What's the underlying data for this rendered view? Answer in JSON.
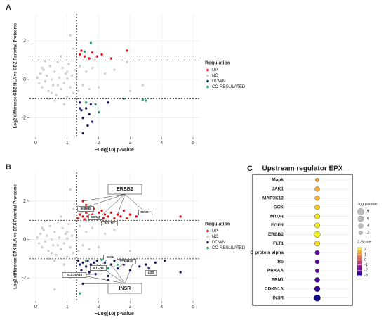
{
  "chart_data": [
    {
      "type": "scatter",
      "panel_label": "A",
      "x_label": "−Log(10) p-value",
      "y_label": "Log2 difference CBZ HLA vs CBZ Parental Proteome",
      "xlim": [
        -0.2,
        5.2
      ],
      "ylim": [
        -3,
        3.4
      ],
      "xticks": [
        0,
        1,
        2,
        3,
        4,
        5
      ],
      "yticks": [
        -2,
        0,
        2
      ],
      "grid": true,
      "vlines": [
        1.3
      ],
      "hlines": [
        -1,
        1
      ],
      "legend_title": "Regulation",
      "legend": "right",
      "series": [
        {
          "name": "NO",
          "color": "#cfcfcf",
          "x": [
            0.05,
            0.1,
            0.15,
            0.2,
            0.25,
            0.3,
            0.35,
            0.4,
            0.45,
            0.5,
            0.55,
            0.6,
            0.65,
            0.7,
            0.75,
            0.8,
            0.85,
            0.9,
            0.95,
            1.0,
            1.05,
            1.1,
            1.15,
            1.2,
            1.25,
            1.35,
            1.4,
            1.5,
            1.6,
            1.7,
            1.8,
            2.0,
            2.2,
            0.3,
            0.6,
            0.8,
            1.1,
            1.0,
            2.5,
            3.0,
            3.4,
            2.9,
            0.9,
            0.4,
            1.2,
            0.2,
            0.5,
            0.7,
            1.0,
            1.3
          ],
          "values": [
            0.1,
            -0.2,
            0.3,
            -0.4,
            0.5,
            -0.1,
            0.2,
            -0.6,
            0.7,
            0,
            -0.3,
            0.4,
            -0.8,
            0.9,
            0.1,
            -0.5,
            0.6,
            -0.2,
            0.3,
            -0.9,
            0.8,
            -0.4,
            0.2,
            -0.7,
            0.5,
            -0.6,
            0.7,
            -0.3,
            0.4,
            -0.5,
            0.6,
            -0.4,
            0.3,
            0.95,
            -1.1,
            1.2,
            2.3,
            0.05,
            0.5,
            -0.6,
            -0.3,
            0.9,
            -1.3,
            -1.0,
            1.6,
            0.6,
            -0.7,
            -0.3,
            0.4,
            0.1
          ]
        },
        {
          "name": "UP",
          "color": "#e8141c",
          "x": [
            1.4,
            1.45,
            1.55,
            1.7,
            1.8,
            1.95,
            2.1,
            2.9,
            2.4
          ],
          "values": [
            1.3,
            1.5,
            1.2,
            1.1,
            1.4,
            1.2,
            1.3,
            1.5,
            1.1
          ]
        },
        {
          "name": "DOWN",
          "color": "#1b1f6b",
          "x": [
            1.4,
            1.45,
            1.5,
            1.6,
            1.7,
            1.65,
            1.8,
            1.75,
            1.5,
            2.3,
            1.4
          ],
          "values": [
            -1.2,
            -1.6,
            -2.0,
            -1.5,
            -1.8,
            -2.4,
            -2.2,
            -1.3,
            -2.8,
            -1.2,
            -1.5
          ]
        },
        {
          "name": "CO-REGULATED",
          "color": "#1fa36a",
          "x": [
            1.55,
            1.75,
            1.6,
            2.0,
            2.8,
            3.4,
            3.5,
            1.9
          ],
          "values": [
            1.45,
            1.9,
            -1.2,
            -1.7,
            -1.0,
            -1.05,
            -1.1,
            -1.3
          ]
        }
      ]
    },
    {
      "type": "scatter",
      "panel_label": "B",
      "x_label": "−Log(10) p-value",
      "y_label": "Log2 difference EPX HLA vs EPX Parental Proteome",
      "xlim": [
        -0.2,
        5.2
      ],
      "ylim": [
        -3.2,
        3.5
      ],
      "xticks": [
        0,
        1,
        2,
        3,
        4,
        5
      ],
      "yticks": [
        -2,
        0,
        2
      ],
      "grid": true,
      "vlines": [
        1.3
      ],
      "hlines": [
        -1,
        1
      ],
      "legend_title": "Regulation",
      "legend": "right",
      "series": [
        {
          "name": "UP",
          "color": "#e8141c",
          "x": [
            1.35,
            1.4,
            1.45,
            1.5,
            1.55,
            1.6,
            1.65,
            1.7,
            1.75,
            1.8,
            1.85,
            1.9,
            1.95,
            2.0,
            2.05,
            2.1,
            2.15,
            2.2,
            2.3,
            2.4,
            2.5,
            2.6,
            2.7,
            2.8,
            2.9,
            3.0,
            3.2,
            3.5,
            3.6,
            4.6,
            1.6,
            1.5
          ],
          "values": [
            1.1,
            1.3,
            1.6,
            1.2,
            1.05,
            1.4,
            1.2,
            1.5,
            1.1,
            1.3,
            1.6,
            1.2,
            1.05,
            1.4,
            1.2,
            1.5,
            1.1,
            1.3,
            1.2,
            1.4,
            1.1,
            1.3,
            1.2,
            1.5,
            1.1,
            1.3,
            1.2,
            1.4,
            1.5,
            1.2,
            1.8,
            2.0
          ]
        },
        {
          "name": "NO",
          "color": "#cfcfcf",
          "x": [
            0.05,
            0.1,
            0.15,
            0.2,
            0.25,
            0.3,
            0.35,
            0.4,
            0.45,
            0.5,
            0.55,
            0.6,
            0.65,
            0.7,
            0.75,
            0.8,
            0.85,
            0.9,
            0.95,
            1.0,
            1.05,
            1.1,
            1.15,
            1.2,
            1.25,
            1.35,
            1.4,
            1.5,
            1.6,
            1.7,
            1.8,
            2.0,
            2.2,
            0.3,
            0.6,
            0.8,
            1.1,
            1.0,
            2.5,
            3.0,
            0.9,
            0.4,
            1.2,
            0.2,
            0.5,
            0.7,
            1.0,
            1.3,
            0.6,
            1.1
          ],
          "values": [
            0.1,
            -0.2,
            0.3,
            -0.4,
            0.5,
            -0.1,
            0.2,
            -0.6,
            0.7,
            0,
            -0.3,
            0.4,
            -0.8,
            0.9,
            0.1,
            -0.5,
            0.6,
            -0.2,
            0.3,
            -0.9,
            0.8,
            -0.4,
            0.2,
            -0.7,
            0.5,
            -0.6,
            0.7,
            -0.3,
            0.4,
            -0.5,
            0.6,
            -0.4,
            0.3,
            0.95,
            -1.1,
            1.2,
            2.6,
            0.05,
            0.5,
            -0.6,
            -1.3,
            -1.0,
            1.6,
            0.6,
            -0.7,
            -0.3,
            0.4,
            0.1,
            -2.6,
            -2.0
          ]
        },
        {
          "name": "DOWN",
          "color": "#1b1f6b",
          "x": [
            1.35,
            1.4,
            1.45,
            1.5,
            1.55,
            1.6,
            1.65,
            1.7,
            1.75,
            1.8,
            1.85,
            1.9,
            1.95,
            2.0,
            2.1,
            2.2,
            2.3,
            2.4,
            2.5,
            2.6,
            2.7,
            2.8,
            2.9,
            3.0,
            3.1,
            3.3,
            3.5,
            3.6,
            3.8,
            4.1,
            4.6,
            2.3,
            1.5
          ],
          "values": [
            -1.1,
            -1.3,
            -1.6,
            -1.2,
            -1.9,
            -1.4,
            -1.1,
            -1.7,
            -1.3,
            -1.5,
            -1.2,
            -1.8,
            -1.1,
            -1.4,
            -1.6,
            -1.2,
            -1.9,
            -1.3,
            -1.1,
            -1.5,
            -1.2,
            -1.3,
            -1.1,
            -1.6,
            -1.2,
            -1.4,
            -1.3,
            -1.5,
            -1.2,
            -1.1,
            -1.7,
            -2.1,
            -2.3
          ]
        },
        {
          "name": "CO-REGULATED",
          "color": "#1fa36a",
          "x": [
            1.4,
            2.3,
            2.6,
            1.6,
            2.1
          ],
          "values": [
            -2.8,
            -1.5,
            -1.3,
            -1.1,
            -1.05
          ]
        }
      ],
      "annotations": [
        "ERBB2",
        "IKBKB",
        "MCM3",
        "POLD2",
        "MCM7",
        "INSR",
        "ECI1",
        "TOMM40",
        "MTCH2",
        "SLC38A10",
        "LSS"
      ]
    },
    {
      "type": "dot",
      "panel_label": "C",
      "title": "Upstream regulator EPX",
      "categories": [
        "Mapk",
        "JAK1",
        "MAP3K12",
        "GCK",
        "MTOR",
        "EGFR",
        "ERBB2",
        "FLT1",
        "G protein alpha",
        "Rb",
        "PRKAA",
        "ERN1",
        "CDKN1A",
        "INSR"
      ],
      "series": [
        {
          "name": "-log p-value",
          "values": [
            2,
            4,
            4,
            4.5,
            5,
            5,
            7,
            5,
            3.5,
            3,
            2.5,
            4.5,
            6,
            8
          ]
        },
        {
          "name": "Z-Score",
          "values": [
            1.2,
            1.5,
            1.6,
            1.8,
            2.2,
            2.3,
            2.4,
            2.1,
            -2,
            -2.2,
            -2.2,
            -2.5,
            -2.8,
            -3.2
          ]
        }
      ],
      "size_ticks": [
        8,
        6,
        4,
        2
      ],
      "zlim": [
        -3.2,
        2.5
      ],
      "zticks": [
        2,
        1,
        0,
        -1,
        -2,
        -3
      ],
      "colorscale": [
        "#0d0887",
        "#5b02a3",
        "#9a179b",
        "#cb4678",
        "#eb7852",
        "#fbb32f",
        "#f0f921"
      ]
    }
  ]
}
